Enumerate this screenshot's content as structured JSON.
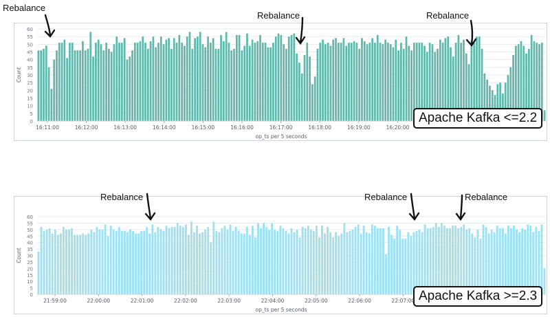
{
  "chart_data": [
    {
      "type": "bar",
      "title": "",
      "xlabel": "op_ts per 5 seconds",
      "ylabel": "Count",
      "ylim": [
        0,
        60
      ],
      "yticks": [
        0,
        5,
        10,
        15,
        20,
        25,
        30,
        35,
        40,
        45,
        50,
        55,
        60
      ],
      "x_tick_labels": [
        "16:11:00",
        "16:12:00",
        "16:13:00",
        "16:14:00",
        "16:15:00",
        "16:16:00",
        "16:17:00",
        "16:18:00",
        "16:19:00",
        "16:20:00"
      ],
      "grid": true,
      "color": "#5fb8ac",
      "badge": "Apache Kafka <=2.2",
      "annotations": [
        "Rebalance",
        "Rebalance",
        "Rebalance"
      ],
      "values": [
        46,
        46,
        47,
        49,
        35,
        21,
        40,
        46,
        51,
        51,
        53,
        41,
        51,
        51,
        46,
        46,
        46,
        52,
        46,
        47,
        58,
        42,
        51,
        53,
        50,
        46,
        51,
        47,
        45,
        50,
        55,
        51,
        51,
        54,
        40,
        42,
        46,
        51,
        51,
        52,
        55,
        51,
        47,
        52,
        55,
        48,
        51,
        55,
        50,
        53,
        54,
        47,
        54,
        51,
        56,
        51,
        49,
        55,
        58,
        47,
        54,
        55,
        58,
        50,
        48,
        55,
        51,
        54,
        47,
        47,
        56,
        52,
        58,
        51,
        46,
        47,
        56,
        56,
        46,
        49,
        57,
        49,
        53,
        51,
        52,
        56,
        51,
        51,
        48,
        48,
        51,
        55,
        57,
        56,
        50,
        47,
        55,
        56,
        57,
        44,
        38,
        31,
        43,
        51,
        42,
        24,
        29,
        47,
        51,
        53,
        50,
        51,
        49,
        53,
        54,
        51,
        51,
        54,
        49,
        51,
        51,
        52,
        51,
        47,
        54,
        52,
        50,
        51,
        54,
        51,
        56,
        51,
        50,
        53,
        51,
        50,
        48,
        53,
        46,
        51,
        47,
        55,
        49,
        46,
        51,
        51,
        51,
        51,
        49,
        45,
        51,
        50,
        45,
        47,
        53,
        51,
        54,
        55,
        48,
        42,
        51,
        56,
        51,
        53,
        44,
        37,
        52,
        51,
        55,
        55,
        47,
        31,
        27,
        23,
        20,
        17,
        24,
        25,
        18,
        25,
        30,
        35,
        43,
        49,
        50,
        52,
        49,
        44,
        47,
        56,
        52,
        51,
        50,
        51,
        7
      ]
    },
    {
      "type": "bar",
      "title": "",
      "xlabel": "op_ts per 5 seconds",
      "ylabel": "Count",
      "ylim": [
        0,
        60
      ],
      "yticks": [
        0,
        5,
        10,
        15,
        20,
        25,
        30,
        35,
        40,
        45,
        50,
        55,
        60
      ],
      "x_tick_labels": [
        "21:59:00",
        "22:00:00",
        "22:01:00",
        "22:02:00",
        "22:03:00",
        "22:04:00",
        "22:05:00",
        "22:06:00",
        "22:07:00"
      ],
      "grid": true,
      "color": "#9fe1f0",
      "badge": "Apache Kafka >=2.3",
      "annotations": [
        "Rebalance",
        "Rebalance",
        "Rebalance"
      ],
      "values": [
        33,
        52,
        49,
        50,
        51,
        47,
        50,
        46,
        47,
        52,
        50,
        50,
        51,
        46,
        46,
        46,
        47,
        46,
        47,
        50,
        48,
        52,
        50,
        50,
        54,
        45,
        53,
        50,
        49,
        52,
        49,
        49,
        48,
        50,
        49,
        47,
        47,
        49,
        49,
        52,
        47,
        54,
        48,
        52,
        50,
        49,
        53,
        51,
        52,
        52,
        55,
        53,
        52,
        54,
        46,
        56,
        48,
        53,
        47,
        48,
        50,
        52,
        40,
        56,
        49,
        48,
        51,
        53,
        50,
        54,
        49,
        52,
        49,
        47,
        47,
        52,
        46,
        53,
        44,
        55,
        51,
        55,
        52,
        50,
        55,
        50,
        49,
        53,
        51,
        49,
        47,
        51,
        48,
        50,
        44,
        52,
        51,
        53,
        50,
        49,
        53,
        44,
        53,
        47,
        52,
        48,
        44,
        48,
        45,
        47,
        55,
        48,
        49,
        50,
        52,
        54,
        47,
        53,
        48,
        47,
        54,
        53,
        51,
        51,
        51,
        31,
        52,
        46,
        43,
        53,
        50,
        43,
        43,
        48,
        45,
        48,
        49,
        50,
        48,
        54,
        51,
        51,
        52,
        55,
        52,
        55,
        53,
        51,
        51,
        53,
        53,
        51,
        52,
        54,
        50,
        51,
        47,
        44,
        50,
        43,
        54,
        52,
        47,
        50,
        48,
        53,
        51,
        51,
        47,
        53,
        51,
        53,
        50,
        48,
        51,
        50,
        54,
        53,
        48,
        52,
        49,
        54,
        20
      ]
    }
  ]
}
